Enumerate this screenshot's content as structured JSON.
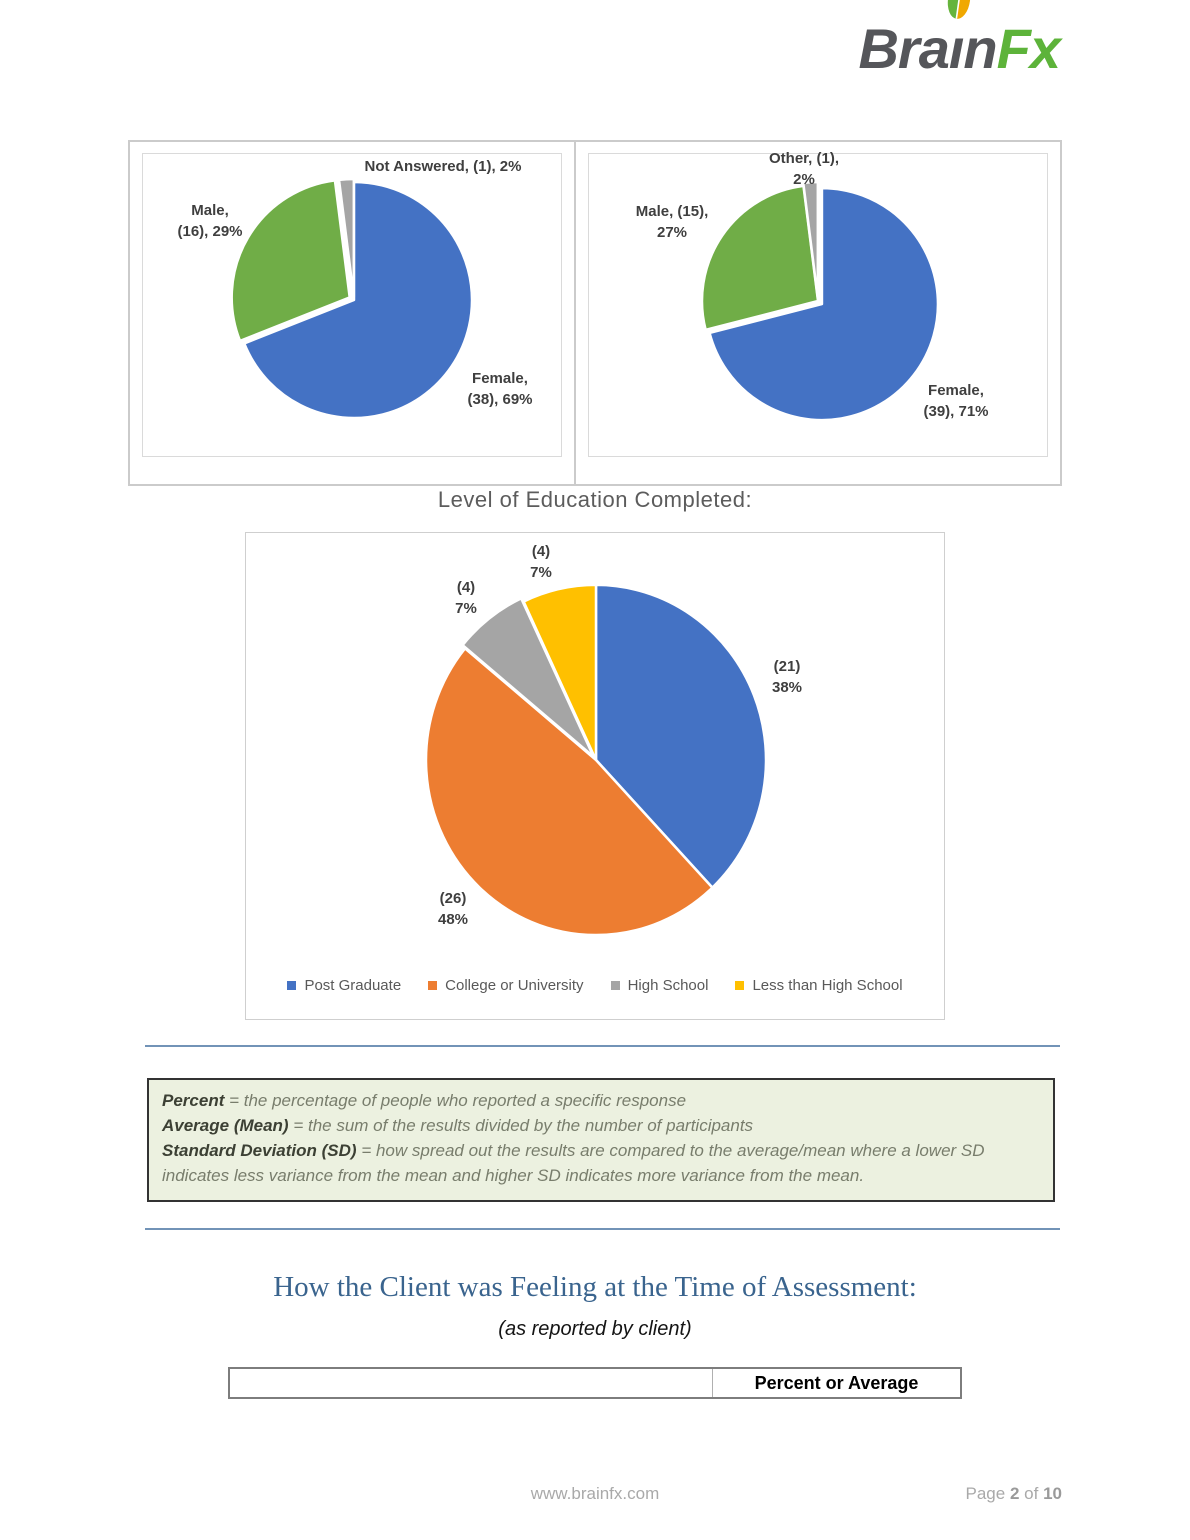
{
  "logo": {
    "brain_text": "Bra",
    "i_text": "ı",
    "n_text": "n",
    "fx_text": "Fx",
    "brain_color": "#55565a",
    "fx_color": "#5db33a",
    "leaf_green": "#66b43c",
    "leaf_yellow": "#f0a800"
  },
  "education_title": "Level of Education Completed:",
  "chart_data": [
    {
      "type": "pie",
      "name": "gender-distribution-left",
      "labels": [
        "Female",
        "Male",
        "Not Answered"
      ],
      "counts": [
        38,
        16,
        1
      ],
      "percents": [
        69,
        29,
        2
      ],
      "colors": [
        "#4472C4",
        "#70AD47",
        "#A5A5A5"
      ],
      "explode": [
        0,
        5,
        3
      ],
      "legend_position": "none",
      "display_labels": {
        "na": "Not Answered, (1), 2%",
        "male1": "Male,",
        "male2": "(16), 29%",
        "female1": "Female,",
        "female2": "(38), 69%"
      }
    },
    {
      "type": "pie",
      "name": "gender-distribution-right",
      "labels": [
        "Female",
        "Male",
        "Other"
      ],
      "counts": [
        39,
        15,
        1
      ],
      "percents": [
        71,
        27,
        2
      ],
      "colors": [
        "#4472C4",
        "#70AD47",
        "#A5A5A5"
      ],
      "explode": [
        5,
        0,
        3
      ],
      "legend_position": "none",
      "display_labels": {
        "other1": "Other, (1),",
        "other2": "2%",
        "male1": "Male, (15),",
        "male2": "27%",
        "female1": "Female,",
        "female2": "(39), 71%"
      }
    },
    {
      "type": "pie",
      "title": "Level of Education Completed",
      "name": "education-completed",
      "labels": [
        "Post Graduate",
        "College or University",
        "High School",
        "Less than High School"
      ],
      "counts": [
        21,
        26,
        4,
        4
      ],
      "percents": [
        38,
        48,
        7,
        7
      ],
      "colors": [
        "#4472C4",
        "#ED7D31",
        "#A5A5A5",
        "#FFC000"
      ],
      "explode": [
        0,
        0,
        4,
        0
      ],
      "legend_position": "bottom",
      "display_labels": {
        "post1": "(21)",
        "post2": "38%",
        "college1": "(26)",
        "college2": "48%",
        "hs1": "(4)",
        "hs2": "7%",
        "lhs1": "(4)",
        "lhs2": "7%"
      }
    }
  ],
  "definitions": [
    {
      "term": "Percent",
      "rest": " = the percentage of people who reported a specific response"
    },
    {
      "term": "Average (Mean)",
      "rest": " = the sum of the results divided by the number of participants"
    },
    {
      "term": "Standard Deviation (SD)",
      "rest": " = how spread out the results are compared to the average/mean where a lower SD indicates less variance from the mean and higher SD  indicates more variance from the mean."
    }
  ],
  "section": {
    "title": "How the Client was Feeling at the Time of Assessment:",
    "subtitle": "(as reported by client)"
  },
  "table": {
    "metric_header": "",
    "value_header": "Percent or Average"
  },
  "footer": {
    "url": "www.brainfx.com",
    "page_label": "Page",
    "page_current": "2",
    "of_label": "of",
    "page_total": "10"
  }
}
